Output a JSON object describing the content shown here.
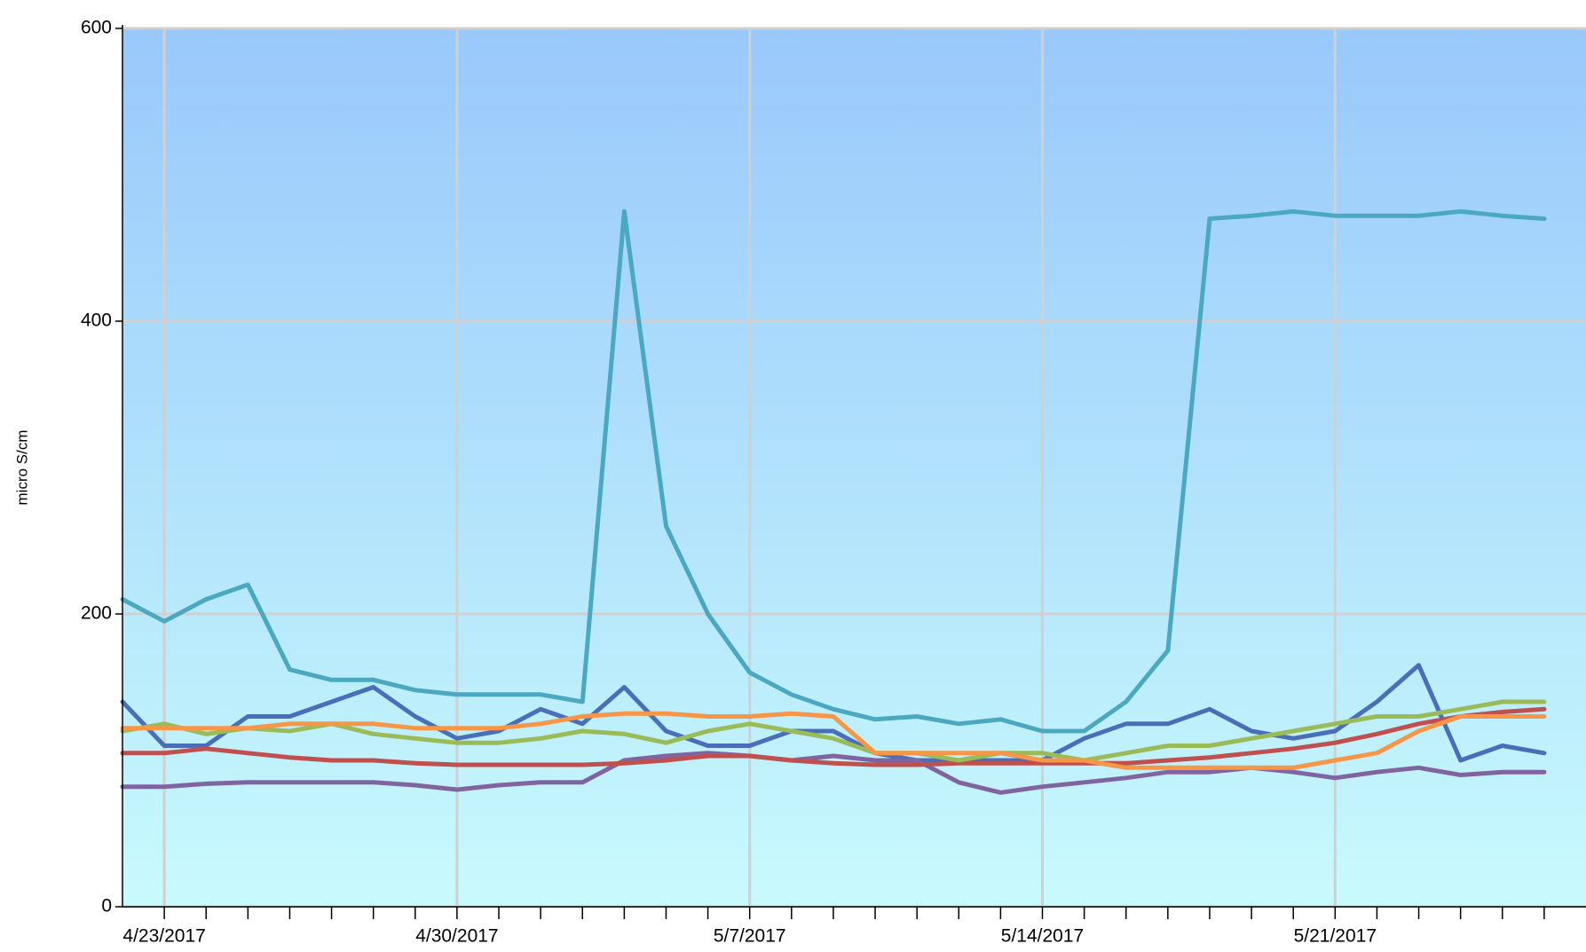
{
  "chart_data": {
    "type": "line",
    "y_label": "micro S/cm",
    "x": [
      "2017-04-22",
      "2017-04-23",
      "2017-04-24",
      "2017-04-25",
      "2017-04-26",
      "2017-04-27",
      "2017-04-28",
      "2017-04-29",
      "2017-04-30",
      "2017-05-01",
      "2017-05-02",
      "2017-05-03",
      "2017-05-04",
      "2017-05-05",
      "2017-05-06",
      "2017-05-07",
      "2017-05-08",
      "2017-05-09",
      "2017-05-10",
      "2017-05-11",
      "2017-05-12",
      "2017-05-13",
      "2017-05-14",
      "2017-05-15",
      "2017-05-16",
      "2017-05-17",
      "2017-05-18",
      "2017-05-19",
      "2017-05-20",
      "2017-05-21",
      "2017-05-22",
      "2017-05-23",
      "2017-05-24",
      "2017-05-25",
      "2017-05-26"
    ],
    "series": [
      {
        "color": "#4aa8c0",
        "values": [
          210,
          195,
          210,
          220,
          162,
          155,
          155,
          148,
          145,
          145,
          145,
          140,
          475,
          260,
          200,
          160,
          145,
          135,
          128,
          130,
          125,
          128,
          120,
          120,
          140,
          175,
          470,
          472,
          475,
          472,
          472,
          472,
          475,
          472,
          470
        ]
      },
      {
        "color": "#4a6fb8",
        "values": [
          140,
          110,
          110,
          130,
          130,
          140,
          150,
          130,
          115,
          120,
          135,
          125,
          150,
          120,
          110,
          110,
          120,
          120,
          105,
          100,
          100,
          100,
          100,
          115,
          125,
          125,
          135,
          120,
          115,
          120,
          140,
          165,
          100,
          110,
          105
        ]
      },
      {
        "color": "#8064a2",
        "values": [
          82,
          82,
          84,
          85,
          85,
          85,
          85,
          83,
          80,
          83,
          85,
          85,
          100,
          103,
          105,
          103,
          100,
          103,
          100,
          100,
          85,
          78,
          82,
          85,
          88,
          92,
          92,
          95,
          92,
          88,
          92,
          95,
          90,
          92,
          92
        ]
      },
      {
        "color": "#c0504d",
        "values": [
          105,
          105,
          108,
          105,
          102,
          100,
          100,
          98,
          97,
          97,
          97,
          97,
          98,
          100,
          103,
          103,
          100,
          98,
          97,
          97,
          98,
          98,
          98,
          98,
          98,
          100,
          102,
          105,
          108,
          112,
          118,
          125,
          130,
          133,
          135
        ]
      },
      {
        "color": "#9bbb59",
        "values": [
          120,
          125,
          118,
          122,
          120,
          125,
          118,
          115,
          112,
          112,
          115,
          120,
          118,
          112,
          120,
          125,
          120,
          115,
          105,
          105,
          100,
          105,
          105,
          100,
          105,
          110,
          110,
          115,
          120,
          125,
          130,
          130,
          135,
          140,
          140
        ]
      },
      {
        "color": "#f79646",
        "values": [
          122,
          122,
          122,
          122,
          125,
          125,
          125,
          122,
          122,
          122,
          125,
          130,
          132,
          132,
          130,
          130,
          132,
          130,
          105,
          105,
          105,
          105,
          100,
          100,
          95,
          95,
          95,
          95,
          95,
          100,
          105,
          120,
          130,
          130,
          130
        ]
      }
    ],
    "xlim": [
      "2017-04-22",
      "2017-05-27"
    ],
    "xticks": [
      {
        "value": "2017-04-23",
        "label": "4/23/2017"
      },
      {
        "value": "2017-04-30",
        "label": "4/30/2017"
      },
      {
        "value": "2017-05-07",
        "label": "5/7/2017"
      },
      {
        "value": "2017-05-14",
        "label": "5/14/2017"
      },
      {
        "value": "2017-05-21",
        "label": "5/21/2017"
      }
    ],
    "xminor_ticks": [
      "2017-04-24",
      "2017-04-25",
      "2017-04-26",
      "2017-04-27",
      "2017-04-28",
      "2017-04-29",
      "2017-05-01",
      "2017-05-02",
      "2017-05-03",
      "2017-05-04",
      "2017-05-05",
      "2017-05-06",
      "2017-05-08",
      "2017-05-09",
      "2017-05-10",
      "2017-05-11",
      "2017-05-12",
      "2017-05-13",
      "2017-05-15",
      "2017-05-16",
      "2017-05-17",
      "2017-05-18",
      "2017-05-19",
      "2017-05-20",
      "2017-05-22",
      "2017-05-23",
      "2017-05-24",
      "2017-05-25",
      "2017-05-26"
    ],
    "ylim": [
      0,
      600
    ],
    "yticks": [
      0,
      200,
      400,
      600
    ],
    "grid": true
  }
}
